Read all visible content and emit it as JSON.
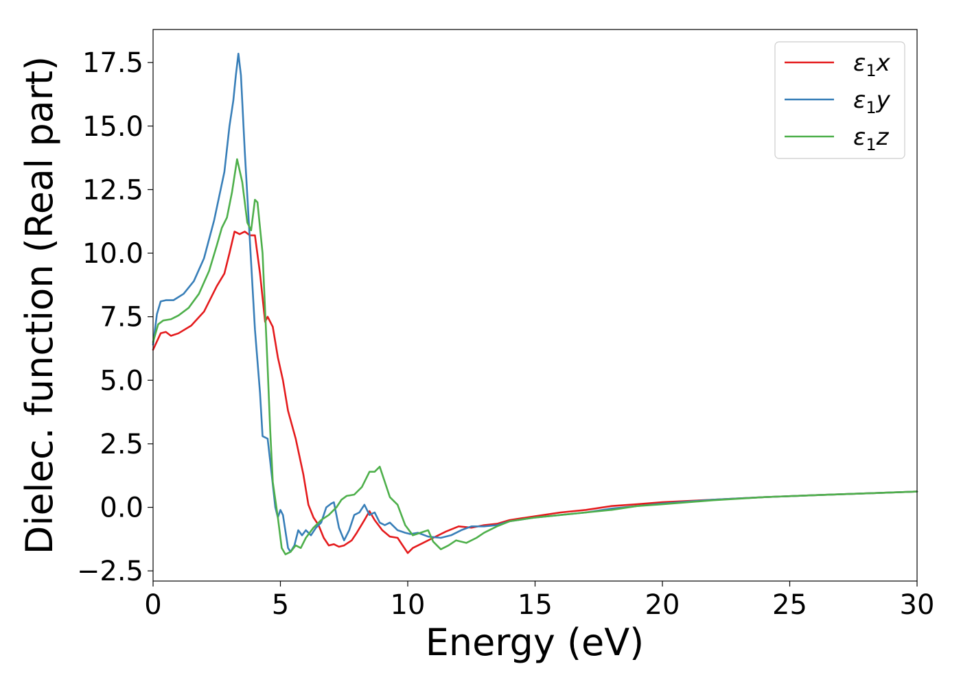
{
  "chart_data": {
    "type": "line",
    "title": "",
    "xlabel": "Energy (eV)",
    "ylabel": "Dielec. function (Real part)",
    "xlim": [
      0,
      30
    ],
    "ylim": [
      -2.9,
      18.8
    ],
    "x_ticks": [
      0,
      5,
      10,
      15,
      20,
      25,
      30
    ],
    "x_tick_labels": [
      "0",
      "5",
      "10",
      "15",
      "20",
      "25",
      "30"
    ],
    "y_ticks": [
      -2.5,
      0.0,
      2.5,
      5.0,
      7.5,
      10.0,
      12.5,
      15.0,
      17.5
    ],
    "y_tick_labels": [
      "−2.5",
      "0.0",
      "2.5",
      "5.0",
      "7.5",
      "10.0",
      "12.5",
      "15.0",
      "17.5"
    ],
    "grid": false,
    "legend_position": "top-right",
    "series": [
      {
        "name": "ε",
        "name_sub": "1",
        "name_suffix": "x",
        "color": "#e41a1c",
        "points": [
          [
            0,
            6.2
          ],
          [
            0.3,
            6.85
          ],
          [
            0.5,
            6.9
          ],
          [
            0.7,
            6.75
          ],
          [
            1.0,
            6.85
          ],
          [
            1.5,
            7.15
          ],
          [
            2.0,
            7.7
          ],
          [
            2.5,
            8.7
          ],
          [
            2.8,
            9.2
          ],
          [
            3.0,
            10.0
          ],
          [
            3.2,
            10.85
          ],
          [
            3.4,
            10.75
          ],
          [
            3.6,
            10.85
          ],
          [
            3.8,
            10.7
          ],
          [
            4.0,
            10.7
          ],
          [
            4.2,
            9.2
          ],
          [
            4.4,
            7.3
          ],
          [
            4.5,
            7.5
          ],
          [
            4.7,
            7.1
          ],
          [
            4.9,
            5.9
          ],
          [
            5.1,
            5.0
          ],
          [
            5.3,
            3.8
          ],
          [
            5.6,
            2.7
          ],
          [
            5.9,
            1.3
          ],
          [
            6.1,
            0.1
          ],
          [
            6.3,
            -0.4
          ],
          [
            6.5,
            -0.7
          ],
          [
            6.7,
            -1.2
          ],
          [
            6.9,
            -1.5
          ],
          [
            7.1,
            -1.45
          ],
          [
            7.3,
            -1.55
          ],
          [
            7.5,
            -1.5
          ],
          [
            7.8,
            -1.3
          ],
          [
            8.0,
            -1.0
          ],
          [
            8.3,
            -0.5
          ],
          [
            8.5,
            -0.15
          ],
          [
            8.7,
            -0.5
          ],
          [
            9.0,
            -0.9
          ],
          [
            9.3,
            -1.15
          ],
          [
            9.6,
            -1.2
          ],
          [
            9.8,
            -1.5
          ],
          [
            10.0,
            -1.8
          ],
          [
            10.2,
            -1.6
          ],
          [
            10.6,
            -1.4
          ],
          [
            11.0,
            -1.2
          ],
          [
            11.5,
            -0.95
          ],
          [
            12.0,
            -0.75
          ],
          [
            12.5,
            -0.8
          ],
          [
            13.0,
            -0.7
          ],
          [
            13.5,
            -0.65
          ],
          [
            14.0,
            -0.5
          ],
          [
            15.0,
            -0.35
          ],
          [
            16.0,
            -0.2
          ],
          [
            17.0,
            -0.1
          ],
          [
            18.0,
            0.05
          ],
          [
            19.0,
            0.12
          ],
          [
            20.0,
            0.2
          ],
          [
            22.0,
            0.3
          ],
          [
            24.0,
            0.4
          ],
          [
            26.0,
            0.48
          ],
          [
            28.0,
            0.55
          ],
          [
            30.0,
            0.62
          ]
        ]
      },
      {
        "name": "ε",
        "name_sub": "1",
        "name_suffix": "y",
        "color": "#377eb8",
        "points": [
          [
            0,
            6.4
          ],
          [
            0.15,
            7.6
          ],
          [
            0.3,
            8.1
          ],
          [
            0.5,
            8.15
          ],
          [
            0.8,
            8.15
          ],
          [
            1.2,
            8.4
          ],
          [
            1.6,
            8.9
          ],
          [
            2.0,
            9.8
          ],
          [
            2.4,
            11.3
          ],
          [
            2.8,
            13.2
          ],
          [
            3.0,
            15.0
          ],
          [
            3.15,
            16.0
          ],
          [
            3.25,
            17.0
          ],
          [
            3.35,
            17.85
          ],
          [
            3.45,
            17.0
          ],
          [
            3.6,
            14.0
          ],
          [
            3.8,
            10.5
          ],
          [
            4.0,
            7.0
          ],
          [
            4.2,
            4.5
          ],
          [
            4.3,
            2.8
          ],
          [
            4.5,
            2.7
          ],
          [
            4.6,
            1.8
          ],
          [
            4.8,
            0.0
          ],
          [
            4.9,
            -0.4
          ],
          [
            5.0,
            -0.1
          ],
          [
            5.1,
            -0.3
          ],
          [
            5.3,
            -1.6
          ],
          [
            5.4,
            -1.75
          ],
          [
            5.55,
            -1.5
          ],
          [
            5.7,
            -0.9
          ],
          [
            5.85,
            -1.1
          ],
          [
            6.0,
            -0.9
          ],
          [
            6.2,
            -1.1
          ],
          [
            6.4,
            -0.8
          ],
          [
            6.6,
            -0.6
          ],
          [
            6.8,
            0.0
          ],
          [
            7.0,
            0.15
          ],
          [
            7.1,
            0.2
          ],
          [
            7.3,
            -0.8
          ],
          [
            7.5,
            -1.3
          ],
          [
            7.7,
            -0.9
          ],
          [
            7.9,
            -0.3
          ],
          [
            8.1,
            -0.2
          ],
          [
            8.3,
            0.1
          ],
          [
            8.5,
            -0.3
          ],
          [
            8.7,
            -0.2
          ],
          [
            8.9,
            -0.6
          ],
          [
            9.1,
            -0.7
          ],
          [
            9.3,
            -0.6
          ],
          [
            9.6,
            -0.9
          ],
          [
            9.9,
            -1.0
          ],
          [
            10.1,
            -1.05
          ],
          [
            10.4,
            -1.0
          ],
          [
            10.8,
            -1.15
          ],
          [
            11.3,
            -1.2
          ],
          [
            11.7,
            -1.1
          ],
          [
            12.1,
            -0.9
          ],
          [
            12.5,
            -0.75
          ],
          [
            13.0,
            -0.75
          ],
          [
            13.5,
            -0.7
          ],
          [
            14.0,
            -0.55
          ],
          [
            15.0,
            -0.4
          ],
          [
            16.0,
            -0.3
          ],
          [
            17.0,
            -0.2
          ],
          [
            18.0,
            -0.05
          ],
          [
            19.0,
            0.05
          ],
          [
            20.0,
            0.15
          ],
          [
            22.0,
            0.3
          ],
          [
            24.0,
            0.4
          ],
          [
            26.0,
            0.48
          ],
          [
            28.0,
            0.55
          ],
          [
            30.0,
            0.62
          ]
        ]
      },
      {
        "name": "ε",
        "name_sub": "1",
        "name_suffix": "z",
        "color": "#4daf4a",
        "points": [
          [
            0,
            6.5
          ],
          [
            0.2,
            7.2
          ],
          [
            0.4,
            7.35
          ],
          [
            0.7,
            7.4
          ],
          [
            1.0,
            7.55
          ],
          [
            1.4,
            7.85
          ],
          [
            1.8,
            8.4
          ],
          [
            2.2,
            9.3
          ],
          [
            2.5,
            10.3
          ],
          [
            2.7,
            11.0
          ],
          [
            2.9,
            11.4
          ],
          [
            3.1,
            12.4
          ],
          [
            3.3,
            13.7
          ],
          [
            3.5,
            12.8
          ],
          [
            3.7,
            11.2
          ],
          [
            3.85,
            10.9
          ],
          [
            4.0,
            12.1
          ],
          [
            4.1,
            12.0
          ],
          [
            4.3,
            10.0
          ],
          [
            4.5,
            5.5
          ],
          [
            4.6,
            3.0
          ],
          [
            4.7,
            1.0
          ],
          [
            4.9,
            -0.4
          ],
          [
            5.05,
            -1.6
          ],
          [
            5.2,
            -1.85
          ],
          [
            5.4,
            -1.75
          ],
          [
            5.6,
            -1.5
          ],
          [
            5.8,
            -1.6
          ],
          [
            6.0,
            -1.2
          ],
          [
            6.3,
            -0.8
          ],
          [
            6.6,
            -0.5
          ],
          [
            6.9,
            -0.3
          ],
          [
            7.2,
            0.0
          ],
          [
            7.4,
            0.3
          ],
          [
            7.6,
            0.45
          ],
          [
            7.9,
            0.5
          ],
          [
            8.2,
            0.8
          ],
          [
            8.5,
            1.4
          ],
          [
            8.7,
            1.4
          ],
          [
            8.9,
            1.6
          ],
          [
            9.1,
            1.0
          ],
          [
            9.3,
            0.4
          ],
          [
            9.6,
            0.1
          ],
          [
            9.9,
            -0.7
          ],
          [
            10.2,
            -1.1
          ],
          [
            10.5,
            -1.0
          ],
          [
            10.8,
            -0.9
          ],
          [
            11.0,
            -1.35
          ],
          [
            11.3,
            -1.65
          ],
          [
            11.6,
            -1.5
          ],
          [
            11.9,
            -1.3
          ],
          [
            12.3,
            -1.4
          ],
          [
            12.7,
            -1.2
          ],
          [
            13.0,
            -1.0
          ],
          [
            13.5,
            -0.75
          ],
          [
            14.0,
            -0.55
          ],
          [
            15.0,
            -0.4
          ],
          [
            16.0,
            -0.3
          ],
          [
            17.0,
            -0.2
          ],
          [
            18.0,
            -0.1
          ],
          [
            19.0,
            0.05
          ],
          [
            20.0,
            0.12
          ],
          [
            22.0,
            0.28
          ],
          [
            24.0,
            0.4
          ],
          [
            26.0,
            0.48
          ],
          [
            28.0,
            0.55
          ],
          [
            30.0,
            0.62
          ]
        ]
      }
    ]
  }
}
